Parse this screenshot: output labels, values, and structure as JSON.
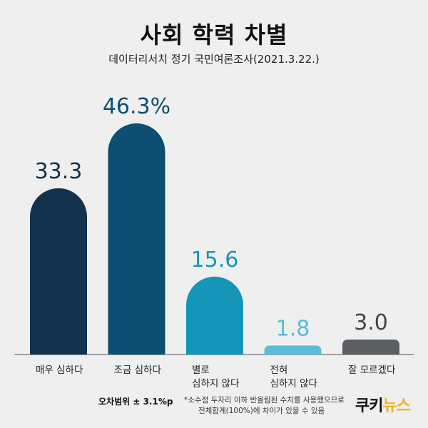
{
  "header": {
    "title": "사회 학력 차별",
    "subtitle": "데이터리서치 정기 국민여론조사(2021.3.22.)"
  },
  "chart_data": {
    "type": "bar",
    "title": "사회 학력 차별",
    "subtitle": "데이터리서치 정기 국민여론조사(2021.3.22.)",
    "categories": [
      "매우 심하다",
      "조금 심하다",
      "별로\n심하지 않다",
      "전혀\n심하지 않다",
      "잘 모르겠다"
    ],
    "values": [
      33.3,
      46.3,
      15.6,
      1.8,
      3.0
    ],
    "value_labels": [
      "33.3",
      "46.3%",
      "15.6",
      "1.8",
      "3.0"
    ],
    "colors": [
      "#12314d",
      "#0d4f73",
      "#1496b8",
      "#5bbcd9",
      "#5b5f63"
    ],
    "label_colors": [
      "#12314d",
      "#0d4f73",
      "#1496b8",
      "#5bbcd9",
      "#444444"
    ],
    "ylim": [
      0,
      50
    ],
    "grid": false,
    "legend": "none"
  },
  "footer": {
    "margin": "오차범위 ± 3.1%p",
    "note_line1": "*소수점 두자리 이하 반올림된 수치를 사용했으므로",
    "note_line2": "전체합계(100%)에 차이가 있을 수 있음",
    "logo_part1": "쿠키",
    "logo_part2": "뉴스"
  }
}
